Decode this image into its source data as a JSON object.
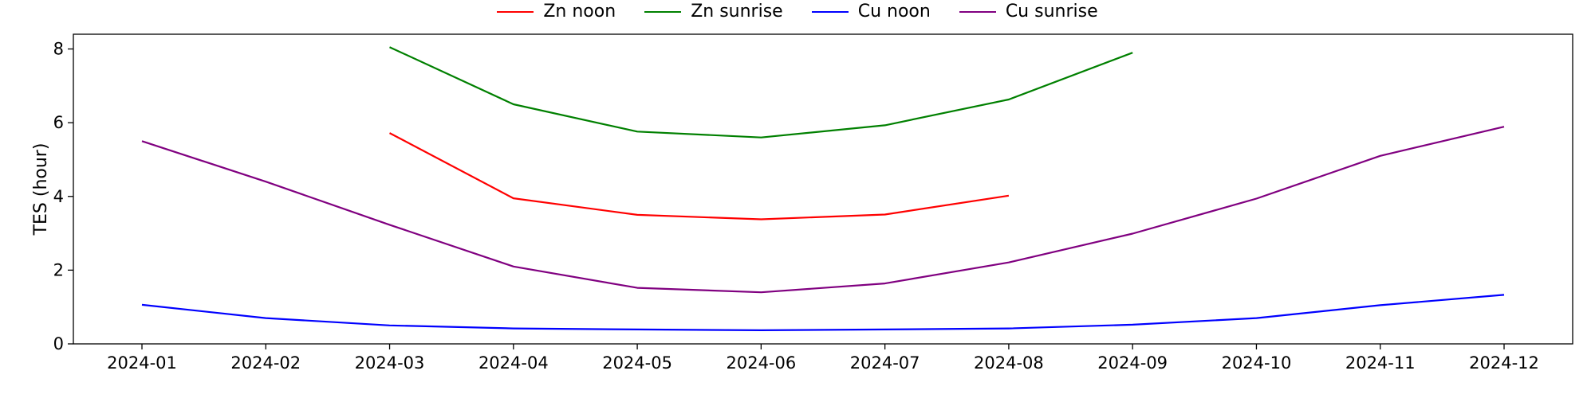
{
  "chart_data": {
    "type": "line",
    "x": [
      "2024-01",
      "2024-02",
      "2024-03",
      "2024-04",
      "2024-05",
      "2024-06",
      "2024-07",
      "2024-08",
      "2024-09",
      "2024-10",
      "2024-11",
      "2024-12"
    ],
    "ylabel": "TES (hour)",
    "xlabel": "",
    "ylim": [
      0,
      8.4
    ],
    "yticks": [
      0,
      2,
      4,
      6,
      8
    ],
    "legend_position": "top-center",
    "grid": false,
    "series": [
      {
        "name": "Zn noon",
        "color": "#ff0000",
        "values": [
          null,
          null,
          5.72,
          3.95,
          3.5,
          3.38,
          3.51,
          4.02,
          null,
          null,
          null,
          null
        ]
      },
      {
        "name": "Zn sunrise",
        "color": "#008000",
        "values": [
          null,
          null,
          8.05,
          6.5,
          5.76,
          5.6,
          5.93,
          6.63,
          7.9,
          null,
          null,
          null
        ]
      },
      {
        "name": "Cu noon",
        "color": "#0000ff",
        "values": [
          1.06,
          0.7,
          0.5,
          0.42,
          0.39,
          0.37,
          0.39,
          0.42,
          0.52,
          0.7,
          1.05,
          1.33
        ]
      },
      {
        "name": "Cu sunrise",
        "color": "#800080",
        "values": [
          5.5,
          4.4,
          3.23,
          2.1,
          1.52,
          1.4,
          1.64,
          2.21,
          2.99,
          3.94,
          5.1,
          5.89
        ]
      }
    ]
  }
}
